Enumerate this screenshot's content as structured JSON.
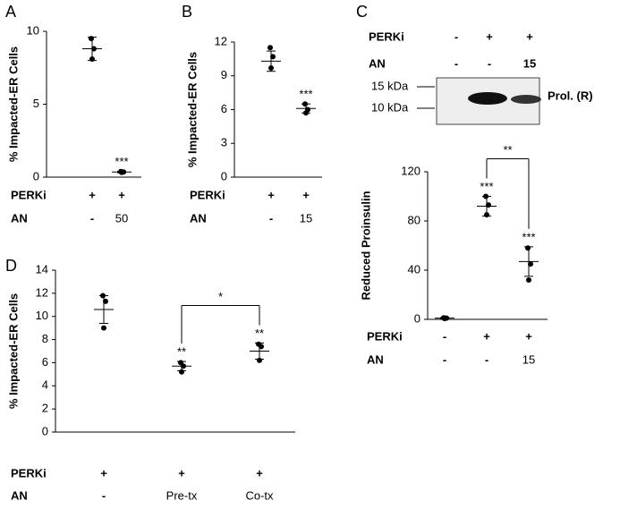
{
  "chart_data": [
    {
      "panel": "A",
      "type": "dotplot",
      "ylabel": "% Impacted-ER Cells",
      "ylim": [
        0,
        10
      ],
      "yticks": [
        0,
        5,
        10
      ],
      "groups": [
        {
          "mean": 8.8,
          "error": 0.8,
          "points": [
            9.5,
            8.8,
            8.1
          ]
        },
        {
          "mean": 0.35,
          "error": 0.05,
          "points": [
            0.38,
            0.35,
            0.32
          ]
        }
      ],
      "significance": [
        null,
        "***"
      ],
      "conditions": [
        {
          "name": "PERKi",
          "labels": [
            "+",
            "+"
          ]
        },
        {
          "name": "AN",
          "labels": [
            "-",
            "50"
          ]
        }
      ]
    },
    {
      "panel": "B",
      "type": "dotplot",
      "ylabel": "% Impacted-ER Cells",
      "ylim": [
        0,
        12
      ],
      "yticks": [
        0,
        3,
        6,
        9,
        12
      ],
      "groups": [
        {
          "mean": 10.3,
          "error": 0.9,
          "points": [
            11.5,
            10.7,
            9.7
          ]
        },
        {
          "mean": 6.1,
          "error": 0.4,
          "points": [
            6.5,
            6.0,
            5.7
          ]
        }
      ],
      "significance": [
        null,
        "***"
      ],
      "conditions": [
        {
          "name": "PERKi",
          "labels": [
            "+",
            "+"
          ]
        },
        {
          "name": "AN",
          "labels": [
            "-",
            "15"
          ]
        }
      ]
    },
    {
      "panel": "C",
      "type": "dotplot",
      "ylabel": "Reduced Proinsulin",
      "ylim": [
        0,
        120
      ],
      "yticks": [
        0,
        40,
        80,
        120
      ],
      "blot": {
        "conditions": [
          {
            "name": "PERKi",
            "labels": [
              "-",
              "+",
              "+"
            ]
          },
          {
            "name": "AN",
            "labels": [
              "-",
              "-",
              "15"
            ]
          }
        ],
        "markers": [
          "15 kDa",
          "10 kDa"
        ],
        "band_label": "Prol. (R)"
      },
      "groups": [
        {
          "mean": 1,
          "error": 0.5,
          "points": [
            1.3,
            1,
            0.6
          ]
        },
        {
          "mean": 92,
          "error": 8,
          "points": [
            100,
            93,
            85
          ]
        },
        {
          "mean": 47,
          "error": 12,
          "points": [
            58,
            45,
            32
          ]
        }
      ],
      "significance": [
        null,
        "***",
        "***"
      ],
      "bracket": {
        "groups": [
          1,
          2
        ],
        "label": "**"
      },
      "conditions": [
        {
          "name": "PERKi",
          "labels": [
            "-",
            "+",
            "+"
          ]
        },
        {
          "name": "AN",
          "labels": [
            "-",
            "-",
            "15"
          ]
        }
      ]
    },
    {
      "panel": "D",
      "type": "dotplot",
      "ylabel": "% Impacted-ER Cells",
      "ylim": [
        0,
        14
      ],
      "yticks": [
        0,
        2,
        4,
        6,
        8,
        10,
        12,
        14
      ],
      "groups": [
        {
          "mean": 10.6,
          "error": 1.2,
          "points": [
            11.8,
            11.3,
            9.0
          ]
        },
        {
          "mean": 5.7,
          "error": 0.4,
          "points": [
            6.0,
            5.7,
            5.2
          ]
        },
        {
          "mean": 7.0,
          "error": 0.7,
          "points": [
            7.6,
            7.4,
            6.2
          ]
        }
      ],
      "significance": [
        null,
        "**",
        "**"
      ],
      "bracket": {
        "groups": [
          1,
          2
        ],
        "label": "*"
      },
      "conditions": [
        {
          "name": "PERKi",
          "labels": [
            "+",
            "+",
            "+"
          ]
        },
        {
          "name": "AN",
          "labels": [
            "-",
            "Pre-tx",
            "Co-tx"
          ]
        }
      ]
    }
  ]
}
